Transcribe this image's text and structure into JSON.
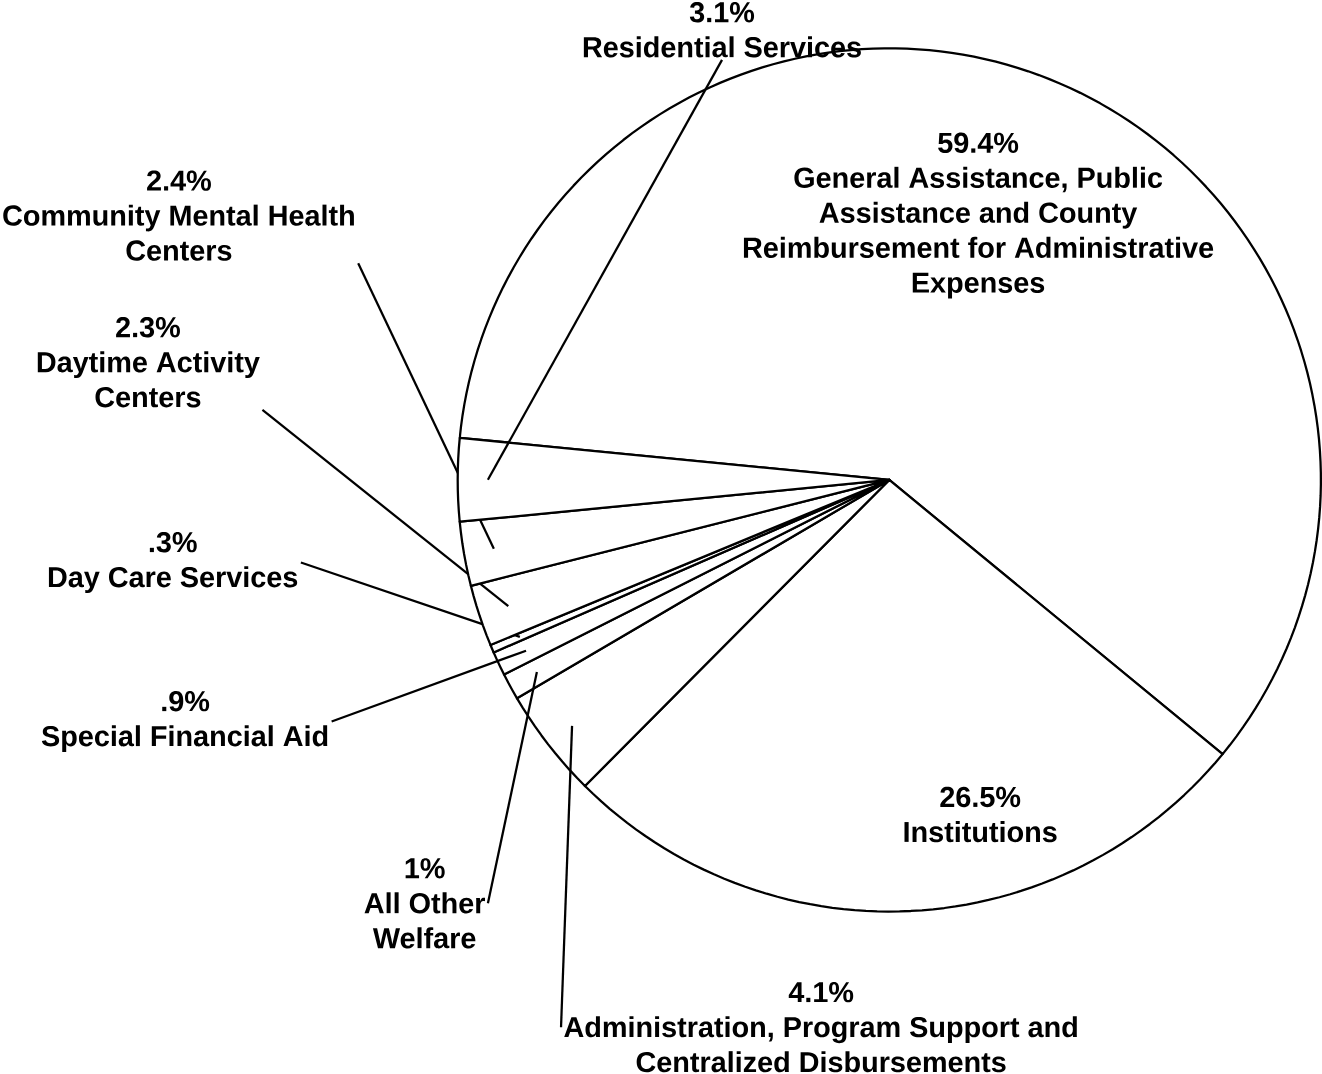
{
  "chart_data": {
    "type": "pie",
    "categories": [
      "General Assistance, Public Assistance and County Reimbursement for Administrative Expenses",
      "Institutions",
      "Administration, Program Support and Centralized Disbursements",
      "All Other Welfare",
      "Special Financial Aid",
      "Day Care Services",
      "Daytime Activity Centers",
      "Community Mental Health Centers",
      "Residential Services"
    ],
    "values": [
      59.4,
      26.5,
      4.1,
      1,
      0.9,
      0.3,
      2.3,
      2.4,
      3.1
    ],
    "value_labels": [
      "59.4%",
      "26.5%",
      "4.1%",
      "1%",
      ".9%",
      ".3%",
      "2.3%",
      "2.4%",
      "3.1%"
    ],
    "colors": [
      "#ffffff",
      "#ffffff",
      "#ffffff",
      "#ffffff",
      "#ffffff",
      "#ffffff",
      "#ffffff",
      "#ffffff",
      "#ffffff"
    ]
  }
}
